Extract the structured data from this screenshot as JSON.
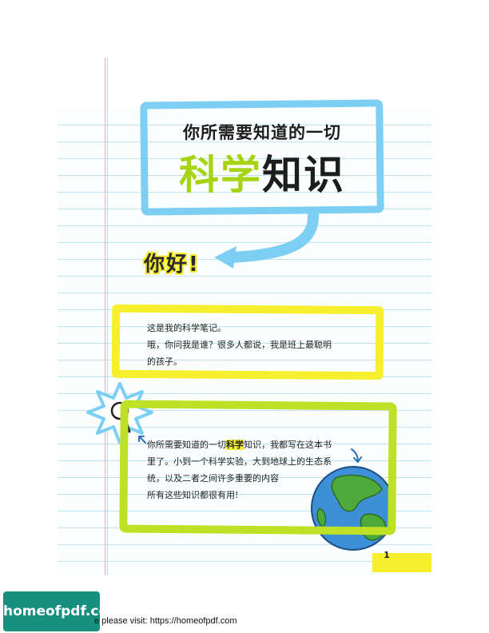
{
  "header": {
    "title_top": "你所需要知道的一切",
    "title_main_green": "科学",
    "title_main_dark": "知识"
  },
  "greeting": "你好!",
  "intro": {
    "line1": "这是我的科学笔记。",
    "line2": "哦，你问我是谁？很多人都说，我是班上最聪明",
    "line3": "的孩子。"
  },
  "body": {
    "line1_before": "你所需要知道的一切",
    "line1_highlight": "科学",
    "line1_after": "知识，我都写在这本书",
    "line2": "里了。小到一个科学实验，大到地球上的生态系",
    "line3": "统，以及二者之间许多重要的内容",
    "line4": "所有这些知识都很有用!"
  },
  "page_number": "1",
  "watermark": {
    "logo": "homeofpdf.com",
    "text": "e please visit: https://homeofpdf.com"
  },
  "colors": {
    "blue_frame": "#7ccff3",
    "yellow": "#f6ef2d",
    "green": "#bfe125",
    "title_green": "#a6d413"
  },
  "icons": [
    "magnifier-icon",
    "earth-icon",
    "arrow-icon"
  ]
}
